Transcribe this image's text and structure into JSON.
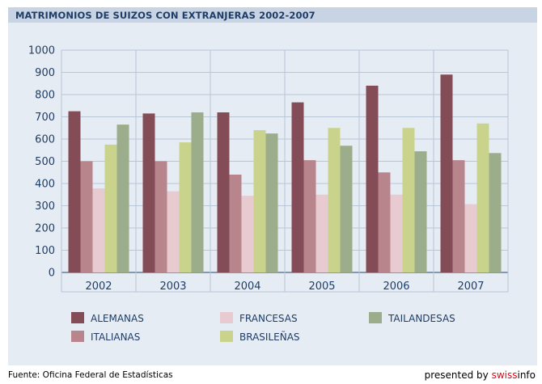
{
  "header": {
    "title": "MATRIMONIOS DE SUIZOS CON EXTRANJERAS 2002-2007"
  },
  "footer": {
    "source": "Fuente: Oficina Federal de Estadísticas",
    "presented_prefix": "presented by ",
    "brand_red": "swiss",
    "brand_black": "info"
  },
  "chart_data": {
    "type": "bar",
    "title": "MATRIMONIOS DE SUIZOS CON EXTRANJERAS 2002-2007",
    "xlabel": "",
    "ylabel": "",
    "categories": [
      "2002",
      "2003",
      "2004",
      "2005",
      "2006",
      "2007"
    ],
    "ylim": [
      0,
      1000
    ],
    "yticks": [
      0,
      100,
      200,
      300,
      400,
      500,
      600,
      700,
      800,
      900,
      1000
    ],
    "grid": true,
    "legend_position": "bottom",
    "series": [
      {
        "name": "ALEMANAS",
        "color": "#844c56",
        "values": [
          725,
          715,
          720,
          765,
          840,
          890
        ]
      },
      {
        "name": "ITALIANAS",
        "color": "#b9858d",
        "values": [
          500,
          500,
          440,
          505,
          450,
          505
        ]
      },
      {
        "name": "FRANCESAS",
        "color": "#e8cbd0",
        "values": [
          378,
          365,
          345,
          350,
          350,
          307
        ]
      },
      {
        "name": "BRASILEÑAS",
        "color": "#c9d38c",
        "values": [
          575,
          585,
          640,
          650,
          650,
          670
        ]
      },
      {
        "name": "TAILANDESAS",
        "color": "#9bad8b",
        "values": [
          665,
          720,
          625,
          570,
          545,
          537
        ]
      }
    ]
  }
}
